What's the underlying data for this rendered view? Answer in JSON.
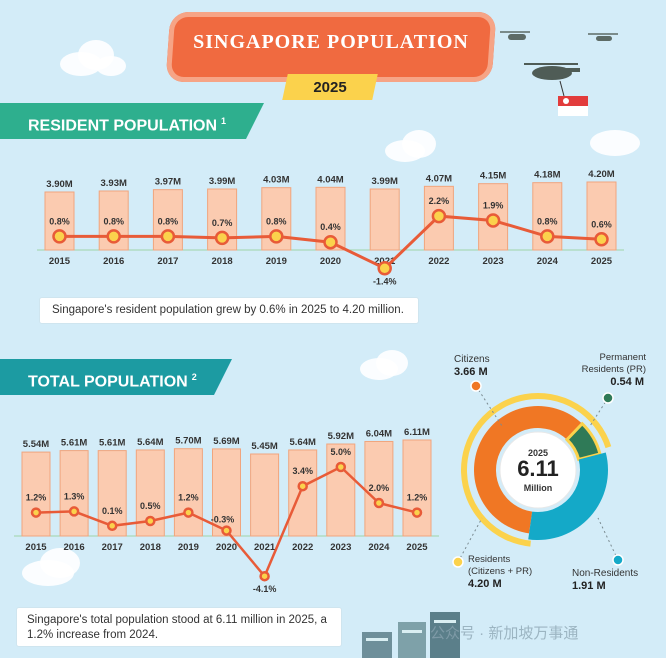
{
  "header": {
    "title": "SINGAPORE POPULATION",
    "year": "2025"
  },
  "resident_section": {
    "title": "RESIDENT POPULATION",
    "footnote": "1",
    "note": "Singapore's resident population grew by 0.6% in 2025 to 4.20 million."
  },
  "total_section": {
    "title": "TOTAL POPULATION",
    "footnote": "2",
    "note": "Singapore's total population stood at 6.11 million in 2025, a 1.2% increase from 2024."
  },
  "watermark": "公众号 · 新加坡万事通",
  "colors": {
    "bar_fill": "#fbcbb0",
    "bar_stroke": "#f0a57e",
    "line": "#e85b38",
    "marker_fill": "#fbd24c",
    "citizens": "#f07724",
    "pr": "#2f7a57",
    "non_residents": "#14a9c8",
    "residents_ring": "#fbd24c"
  },
  "chart_data": [
    {
      "type": "bar",
      "name": "resident-population",
      "categories": [
        "2015",
        "2016",
        "2017",
        "2018",
        "2019",
        "2020",
        "2021",
        "2022",
        "2023",
        "2024",
        "2025"
      ],
      "series": [
        {
          "name": "Population (M)",
          "values": [
            3.9,
            3.93,
            3.97,
            3.99,
            4.03,
            4.04,
            3.99,
            4.07,
            4.15,
            4.18,
            4.2
          ],
          "labels": [
            "3.90M",
            "3.93M",
            "3.97M",
            "3.99M",
            "4.03M",
            "4.04M",
            "3.99M",
            "4.07M",
            "4.15M",
            "4.18M",
            "4.20M"
          ]
        },
        {
          "name": "Growth (%)",
          "type": "line",
          "values": [
            0.8,
            0.8,
            0.8,
            0.7,
            0.8,
            0.4,
            -1.4,
            2.2,
            1.9,
            0.8,
            0.6
          ],
          "labels": [
            "0.8%",
            "0.8%",
            "0.8%",
            "0.7%",
            "0.8%",
            "0.4%",
            "-1.4%",
            "2.2%",
            "1.9%",
            "0.8%",
            "0.6%"
          ]
        }
      ]
    },
    {
      "type": "bar",
      "name": "total-population",
      "categories": [
        "2015",
        "2016",
        "2017",
        "2018",
        "2019",
        "2020",
        "2021",
        "2022",
        "2023",
        "2024",
        "2025"
      ],
      "series": [
        {
          "name": "Population (M)",
          "values": [
            5.54,
            5.61,
            5.61,
            5.64,
            5.7,
            5.69,
            5.45,
            5.64,
            5.92,
            6.04,
            6.11
          ],
          "labels": [
            "5.54M",
            "5.61M",
            "5.61M",
            "5.64M",
            "5.70M",
            "5.69M",
            "5.45M",
            "5.64M",
            "5.92M",
            "6.04M",
            "6.11M"
          ]
        },
        {
          "name": "Growth (%)",
          "type": "line",
          "values": [
            1.2,
            1.3,
            0.1,
            0.5,
            1.2,
            -0.3,
            -4.1,
            3.4,
            5.0,
            2.0,
            1.2
          ],
          "labels": [
            "1.2%",
            "1.3%",
            "0.1%",
            "0.5%",
            "1.2%",
            "-0.3%",
            "-4.1%",
            "3.4%",
            "5.0%",
            "2.0%",
            "1.2%"
          ]
        }
      ]
    },
    {
      "type": "pie",
      "name": "population-composition",
      "center_year": "2025",
      "center_value": "6.11",
      "center_unit": "Million",
      "slices": [
        {
          "name": "Citizens",
          "value": 3.66,
          "label": "3.66 M"
        },
        {
          "name": "Permanent Residents (PR)",
          "value": 0.54,
          "label": "0.54 M"
        },
        {
          "name": "Non-Residents",
          "value": 1.91,
          "label": "1.91 M"
        }
      ],
      "residents": {
        "name": "Residents (Citizens + PR)",
        "value": 4.2,
        "label": "4.20 M"
      }
    }
  ]
}
